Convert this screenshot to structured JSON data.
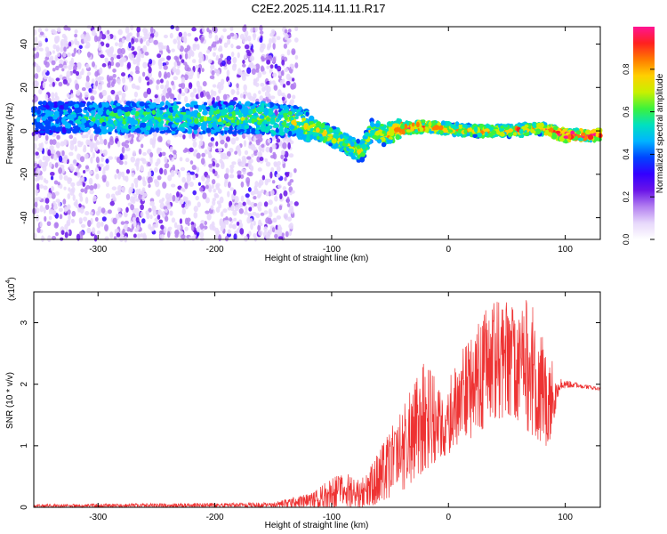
{
  "title": "C2E2.2025.114.11.11.R17",
  "chart_data": [
    {
      "type": "heatmap",
      "name": "spectrogram",
      "xlabel": "Height of straight line (km)",
      "ylabel": "Frequency (Hz)",
      "xlim": [
        -355,
        130
      ],
      "ylim": [
        -50,
        48
      ],
      "xticks": [
        -300,
        -200,
        -100,
        0,
        100
      ],
      "yticks": [
        -40,
        -20,
        0,
        20,
        40
      ],
      "colorbar": {
        "label": "Normalized spectral amplitude",
        "range": [
          0,
          1
        ],
        "ticks": [
          "0.0",
          "0.2",
          "0.4",
          "0.6",
          "0.8"
        ],
        "colors": [
          "#ffffff",
          "#e7d8fb",
          "#b37ff0",
          "#6a14e8",
          "#3300ff",
          "#0044ff",
          "#00b4ff",
          "#00e0c0",
          "#3cf23c",
          "#c8f000",
          "#ffd000",
          "#ff7a00",
          "#ff2020",
          "#ff1493"
        ]
      },
      "band": [
        {
          "x": -355,
          "f": 6,
          "amp": 0.25
        },
        {
          "x": -290,
          "f": 6,
          "amp": 0.4
        },
        {
          "x": -230,
          "f": 6,
          "amp": 0.4
        },
        {
          "x": -160,
          "f": 6,
          "amp": 0.45
        },
        {
          "x": -130,
          "f": 4,
          "amp": 0.5
        },
        {
          "x": -110,
          "f": 0,
          "amp": 0.55
        },
        {
          "x": -90,
          "f": -5,
          "amp": 0.55
        },
        {
          "x": -75,
          "f": -10,
          "amp": 0.5
        },
        {
          "x": -65,
          "f": 1,
          "amp": 0.5
        },
        {
          "x": -55,
          "f": -2,
          "amp": 0.6
        },
        {
          "x": -40,
          "f": 1,
          "amp": 0.8
        },
        {
          "x": -20,
          "f": 2,
          "amp": 0.75
        },
        {
          "x": 0,
          "f": 1,
          "amp": 0.6
        },
        {
          "x": 25,
          "f": 0,
          "amp": 0.65
        },
        {
          "x": 50,
          "f": 0,
          "amp": 0.6
        },
        {
          "x": 80,
          "f": 1,
          "amp": 0.7
        },
        {
          "x": 100,
          "f": -2,
          "amp": 0.9
        },
        {
          "x": 130,
          "f": -2,
          "amp": 0.85
        }
      ]
    },
    {
      "type": "line",
      "name": "snr",
      "xlabel": "Height of straight line (km)",
      "ylabel": "SNR (10 * v/v)",
      "yscale_label": "(x10",
      "yscale_exp": "4",
      "color": "#ee3333",
      "xlim": [
        -355,
        130
      ],
      "ylim": [
        0,
        3.5
      ],
      "xticks": [
        -300,
        -200,
        -100,
        0,
        100
      ],
      "yticks": [
        0,
        1,
        2,
        3
      ],
      "envelope_x": [
        -355,
        -150,
        -115,
        -100,
        -85,
        -75,
        -60,
        -40,
        -20,
        -5,
        10,
        25,
        40,
        55,
        70,
        85,
        95,
        105,
        130
      ],
      "envelope_min": [
        0.0,
        0.0,
        0.0,
        0.0,
        0.0,
        0.0,
        0.05,
        0.25,
        0.6,
        0.8,
        1.0,
        1.2,
        1.4,
        1.5,
        1.2,
        0.9,
        1.9,
        1.95,
        1.9
      ],
      "envelope_max": [
        0.05,
        0.08,
        0.25,
        0.5,
        0.55,
        0.45,
        0.9,
        1.6,
        2.4,
        1.9,
        2.5,
        3.0,
        3.5,
        3.3,
        3.4,
        2.6,
        2.1,
        2.05,
        1.95
      ]
    }
  ]
}
